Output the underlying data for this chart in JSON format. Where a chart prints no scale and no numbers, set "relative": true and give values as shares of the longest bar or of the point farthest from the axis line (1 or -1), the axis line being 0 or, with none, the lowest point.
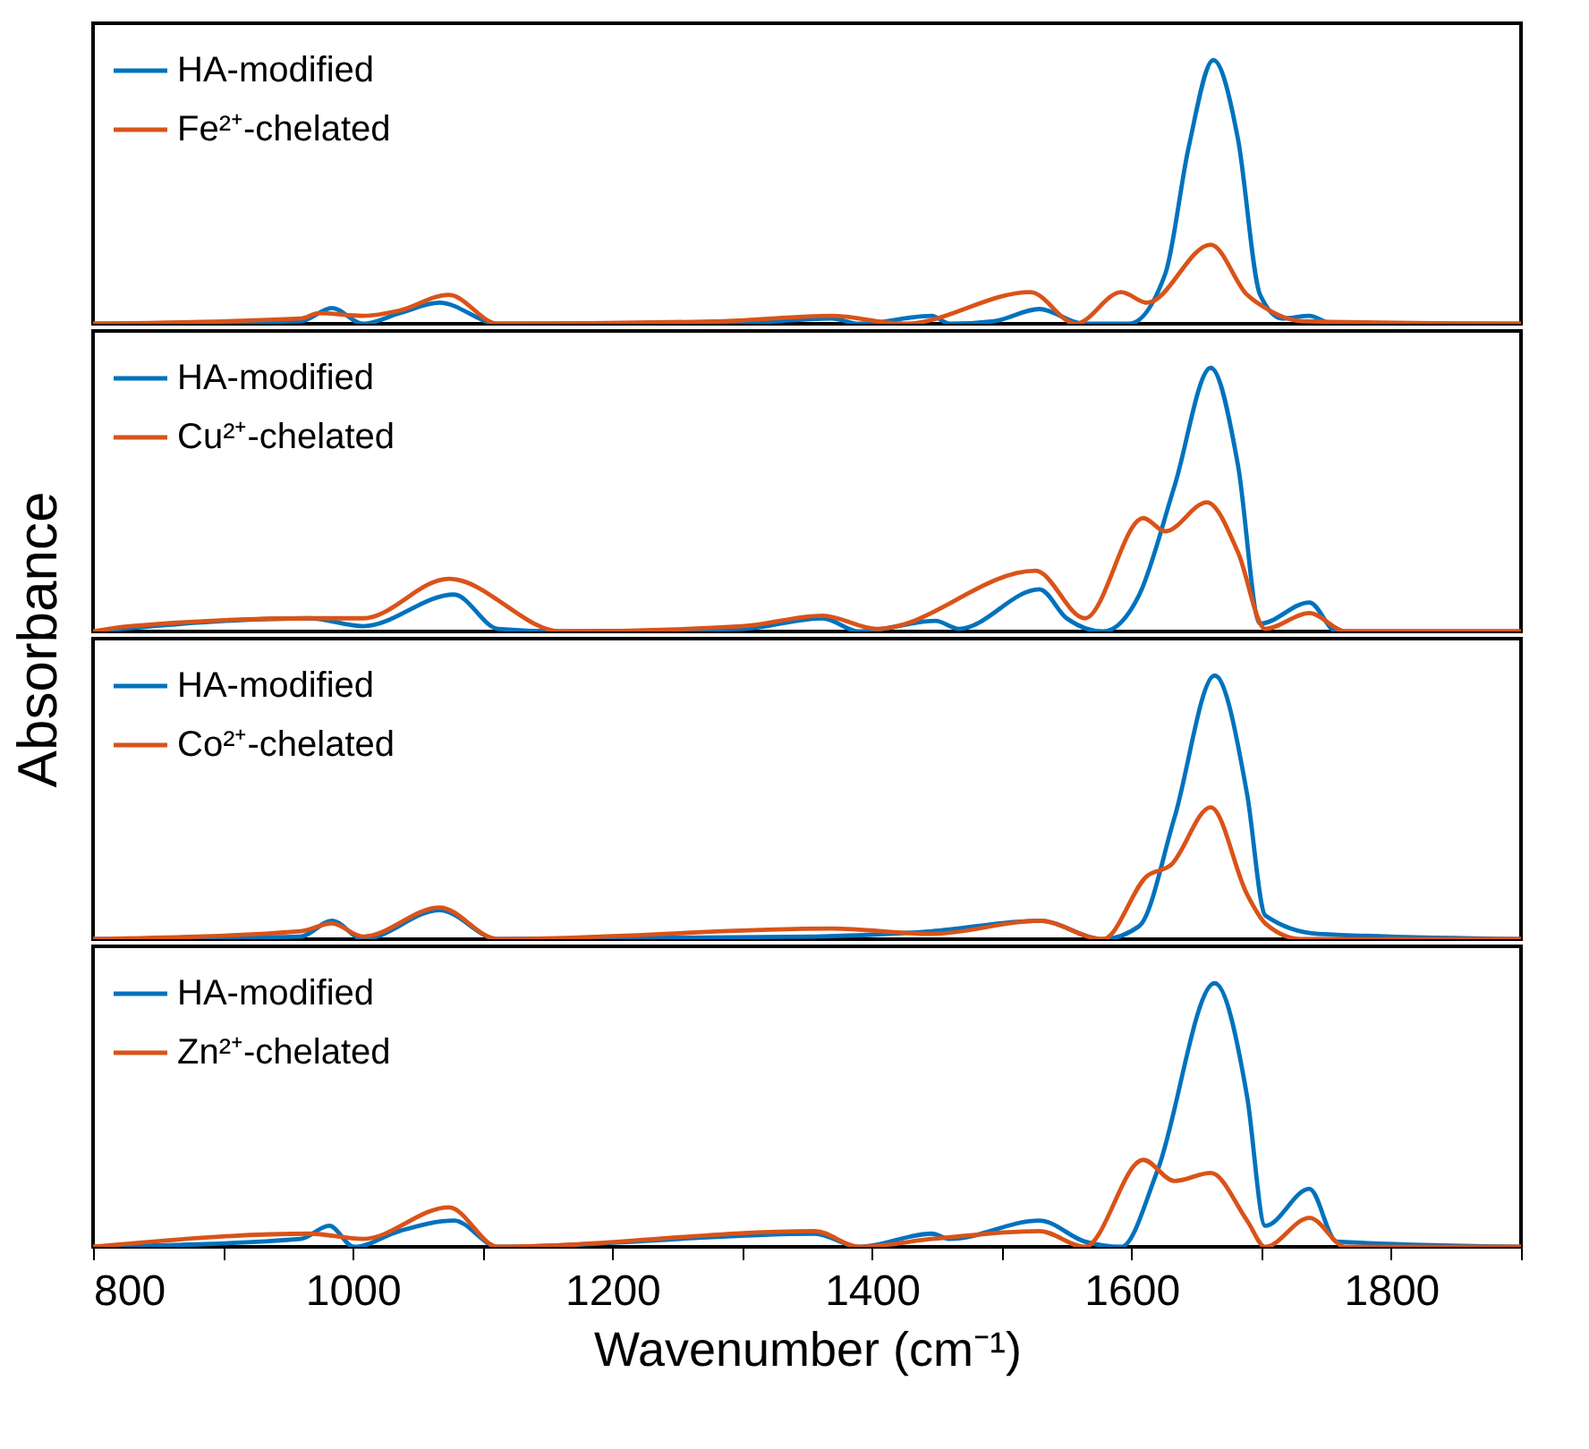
{
  "chart_data": [
    {
      "type": "line",
      "relative": true,
      "legend": "top left",
      "tick_labels": false,
      "xlim": [
        800,
        1900
      ],
      "series": [
        {
          "name": "HA-modified",
          "color": "#0072bd",
          "x": [
            800,
            960,
            984,
            1008,
            1036,
            1067,
            1112,
            1286,
            1369,
            1390,
            1446,
            1460,
            1494,
            1529,
            1563,
            1598,
            1626,
            1644,
            1663,
            1682,
            1699,
            1716,
            1737,
            1755,
            1900
          ],
          "values": [
            0,
            0.01,
            0.06,
            0,
            0.04,
            0.08,
            0,
            0,
            0.02,
            0,
            0.03,
            0,
            0.01,
            0.056,
            0,
            0,
            0.19,
            0.67,
            1,
            0.7,
            0.11,
            0.02,
            0.03,
            0,
            0
          ]
        },
        {
          "name": "Fe²⁺-chelated",
          "color": "#d95319",
          "x": [
            800,
            960,
            974,
            1008,
            1036,
            1074,
            1112,
            1286,
            1369,
            1425,
            1522,
            1557,
            1592,
            1612,
            1661,
            1689,
            1703,
            1731,
            1900
          ],
          "values": [
            0,
            0.02,
            0.04,
            0.03,
            0.05,
            0.11,
            0,
            0.01,
            0.03,
            0,
            0.12,
            0,
            0.12,
            0.08,
            0.3,
            0.11,
            0.06,
            0.01,
            0
          ]
        }
      ]
    },
    {
      "type": "line",
      "relative": true,
      "legend": "top left",
      "tick_labels": false,
      "xlim": [
        800,
        1900
      ],
      "series": [
        {
          "name": "HA-modified",
          "color": "#0072bd",
          "x": [
            800,
            967,
            1008,
            1078,
            1112,
            1161,
            1300,
            1362,
            1390,
            1449,
            1467,
            1529,
            1550,
            1578,
            1606,
            1633,
            1661,
            1682,
            1699,
            1737,
            1758,
            1900
          ],
          "values": [
            0,
            0.05,
            0.02,
            0.14,
            0.01,
            0,
            0.01,
            0.05,
            0,
            0.04,
            0.01,
            0.16,
            0.05,
            0,
            0.14,
            0.55,
            1,
            0.63,
            0.03,
            0.11,
            0,
            0
          ]
        },
        {
          "name": "Cu²⁺-chelated",
          "color": "#d95319",
          "x": [
            800,
            828,
            967,
            1008,
            1074,
            1161,
            1300,
            1362,
            1404,
            1526,
            1564,
            1609,
            1626,
            1658,
            1682,
            1703,
            1737,
            1765,
            1900
          ],
          "values": [
            0,
            0.02,
            0.05,
            0.05,
            0.2,
            0,
            0.02,
            0.06,
            0.01,
            0.23,
            0.05,
            0.43,
            0.38,
            0.49,
            0.3,
            0.01,
            0.07,
            0,
            0
          ]
        }
      ]
    },
    {
      "type": "line",
      "relative": true,
      "legend": "top left",
      "tick_labels": false,
      "xlim": [
        800,
        1900
      ],
      "ylabel": "Absorbance",
      "series": [
        {
          "name": "HA-modified",
          "color": "#0072bd",
          "x": [
            800,
            960,
            984,
            1008,
            1067,
            1112,
            1356,
            1446,
            1529,
            1578,
            1606,
            1633,
            1664,
            1689,
            1703,
            1744,
            1900
          ],
          "values": [
            0,
            0.01,
            0.07,
            0,
            0.11,
            0,
            0.01,
            0.03,
            0.07,
            0,
            0.05,
            0.46,
            1,
            0.55,
            0.09,
            0.02,
            0
          ]
        },
        {
          "name": "Co²⁺-chelated",
          "color": "#d95319",
          "x": [
            800,
            960,
            984,
            1008,
            1067,
            1112,
            1369,
            1446,
            1529,
            1578,
            1612,
            1630,
            1661,
            1689,
            1703,
            1731,
            1900
          ],
          "values": [
            0,
            0.03,
            0.06,
            0.01,
            0.12,
            0,
            0.04,
            0.02,
            0.07,
            0,
            0.24,
            0.28,
            0.5,
            0.17,
            0.06,
            0,
            0
          ]
        }
      ]
    },
    {
      "type": "line",
      "relative": true,
      "legend": "top left",
      "tick_labels": "x",
      "xlim": [
        800,
        1900
      ],
      "xticks": [
        800,
        {
          "value": 900,
          "label": null
        },
        1000,
        {
          "value": 1100,
          "label": null
        },
        1200,
        {
          "value": 1300,
          "label": null
        },
        1400,
        {
          "value": 1500,
          "label": null
        },
        1600,
        {
          "value": 1700,
          "label": null
        },
        1800,
        {
          "value": 1900,
          "label": null
        }
      ],
      "xlabel": "Wavenumber (cm⁻¹)",
      "series": [
        {
          "name": "HA-modified",
          "color": "#0072bd",
          "x": [
            800,
            960,
            982,
            1001,
            1036,
            1078,
            1112,
            1356,
            1390,
            1446,
            1460,
            1529,
            1564,
            1592,
            1620,
            1664,
            1689,
            1703,
            1737,
            1758,
            1900
          ],
          "values": [
            0,
            0.03,
            0.08,
            0,
            0.06,
            0.1,
            0,
            0.05,
            0,
            0.05,
            0.03,
            0.1,
            0.02,
            0,
            0.29,
            1,
            0.57,
            0.08,
            0.22,
            0.02,
            0
          ]
        },
        {
          "name": "Zn²⁺-chelated",
          "color": "#d95319",
          "x": [
            800,
            967,
            1008,
            1074,
            1112,
            1356,
            1390,
            1446,
            1529,
            1564,
            1609,
            1633,
            1661,
            1689,
            1703,
            1737,
            1765,
            1900
          ],
          "values": [
            0,
            0.05,
            0.03,
            0.15,
            0,
            0.06,
            0,
            0.03,
            0.06,
            0,
            0.33,
            0.25,
            0.28,
            0.1,
            0,
            0.11,
            0,
            0
          ]
        }
      ]
    }
  ]
}
